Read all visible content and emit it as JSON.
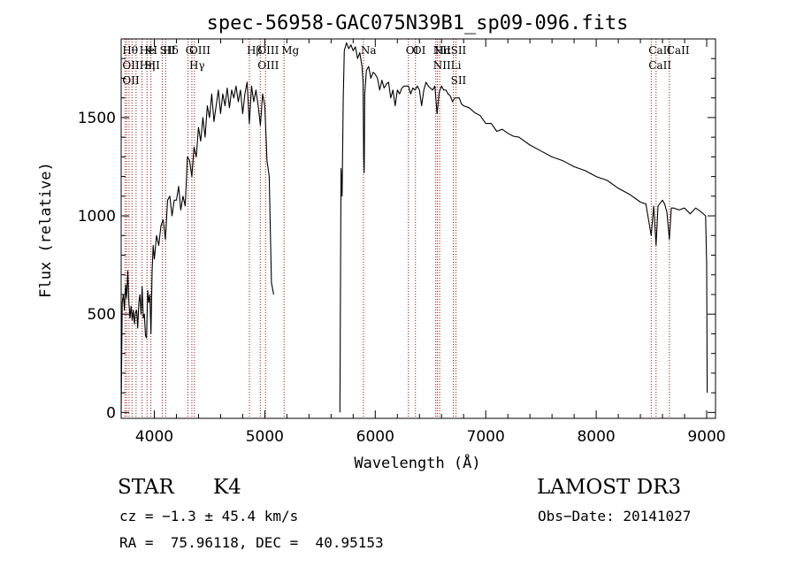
{
  "chart_data": {
    "type": "line",
    "title": "spec-56958-GAC075N39B1_sp09-096.fits",
    "xlabel": "Wavelength (Å)",
    "ylabel": "Flux (relative)",
    "xlim": [
      3700,
      9080
    ],
    "ylim": [
      -30,
      1900
    ],
    "xticks": [
      4000,
      5000,
      6000,
      7000,
      8000,
      9000
    ],
    "yticks": [
      0,
      500,
      1000,
      1500
    ],
    "grid": false,
    "line_color": "#000000",
    "marker_color": "#a01010",
    "gap": [
      5080,
      5680
    ],
    "series": [
      {
        "name": "flux",
        "segments": [
          [
            [
              3700,
              0
            ],
            [
              3710,
              560
            ],
            [
              3720,
              600
            ],
            [
              3730,
              520
            ],
            [
              3740,
              650
            ],
            [
              3750,
              580
            ],
            [
              3760,
              720
            ],
            [
              3770,
              560
            ],
            [
              3780,
              480
            ],
            [
              3790,
              540
            ],
            [
              3800,
              470
            ],
            [
              3810,
              520
            ],
            [
              3820,
              450
            ],
            [
              3830,
              510
            ],
            [
              3840,
              520
            ],
            [
              3850,
              430
            ],
            [
              3860,
              560
            ],
            [
              3870,
              600
            ],
            [
              3880,
              500
            ],
            [
              3890,
              640
            ],
            [
              3900,
              480
            ],
            [
              3910,
              500
            ],
            [
              3920,
              390
            ],
            [
              3930,
              380
            ],
            [
              3940,
              620
            ],
            [
              3950,
              560
            ],
            [
              3960,
              600
            ],
            [
              3970,
              400
            ],
            [
              3980,
              720
            ],
            [
              3990,
              850
            ],
            [
              4000,
              780
            ],
            [
              4020,
              900
            ],
            [
              4040,
              850
            ],
            [
              4060,
              950
            ],
            [
              4080,
              980
            ],
            [
              4100,
              880
            ],
            [
              4120,
              1080
            ],
            [
              4140,
              1100
            ],
            [
              4160,
              1000
            ],
            [
              4180,
              1080
            ],
            [
              4200,
              1080
            ],
            [
              4220,
              1150
            ],
            [
              4240,
              1030
            ],
            [
              4260,
              1100
            ],
            [
              4280,
              1050
            ],
            [
              4300,
              1300
            ],
            [
              4320,
              1280
            ],
            [
              4340,
              1200
            ],
            [
              4360,
              1350
            ],
            [
              4380,
              1300
            ],
            [
              4400,
              1450
            ],
            [
              4420,
              1380
            ],
            [
              4440,
              1500
            ],
            [
              4460,
              1400
            ],
            [
              4480,
              1560
            ],
            [
              4500,
              1500
            ],
            [
              4520,
              1620
            ],
            [
              4540,
              1480
            ],
            [
              4560,
              1560
            ],
            [
              4580,
              1640
            ],
            [
              4600,
              1520
            ],
            [
              4620,
              1620
            ],
            [
              4640,
              1560
            ],
            [
              4660,
              1650
            ],
            [
              4680,
              1550
            ],
            [
              4700,
              1640
            ],
            [
              4720,
              1600
            ],
            [
              4740,
              1660
            ],
            [
              4760,
              1580
            ],
            [
              4780,
              1640
            ],
            [
              4800,
              1520
            ],
            [
              4820,
              1620
            ],
            [
              4840,
              1680
            ],
            [
              4860,
              1470
            ],
            [
              4880,
              1660
            ],
            [
              4900,
              1580
            ],
            [
              4920,
              1640
            ],
            [
              4940,
              1560
            ],
            [
              4960,
              1460
            ],
            [
              4980,
              1620
            ],
            [
              5000,
              1560
            ],
            [
              5020,
              1280
            ],
            [
              5040,
              1200
            ],
            [
              5060,
              660
            ],
            [
              5080,
              600
            ]
          ],
          [
            [
              5680,
              0
            ],
            [
              5690,
              1240
            ],
            [
              5700,
              1100
            ],
            [
              5710,
              1600
            ],
            [
              5720,
              1840
            ],
            [
              5740,
              1880
            ],
            [
              5760,
              1850
            ],
            [
              5780,
              1870
            ],
            [
              5800,
              1840
            ],
            [
              5820,
              1860
            ],
            [
              5840,
              1800
            ],
            [
              5860,
              1830
            ],
            [
              5880,
              1760
            ],
            [
              5890,
              1680
            ],
            [
              5895,
              1300
            ],
            [
              5900,
              1220
            ],
            [
              5905,
              1620
            ],
            [
              5920,
              1740
            ],
            [
              5940,
              1760
            ],
            [
              5960,
              1700
            ],
            [
              5980,
              1730
            ],
            [
              6000,
              1720
            ],
            [
              6020,
              1700
            ],
            [
              6040,
              1640
            ],
            [
              6060,
              1690
            ],
            [
              6080,
              1650
            ],
            [
              6100,
              1670
            ],
            [
              6120,
              1680
            ],
            [
              6140,
              1600
            ],
            [
              6160,
              1640
            ],
            [
              6180,
              1560
            ],
            [
              6200,
              1640
            ],
            [
              6220,
              1620
            ],
            [
              6240,
              1650
            ],
            [
              6260,
              1660
            ],
            [
              6280,
              1660
            ],
            [
              6300,
              1660
            ],
            [
              6320,
              1620
            ],
            [
              6340,
              1650
            ],
            [
              6360,
              1640
            ],
            [
              6380,
              1660
            ],
            [
              6400,
              1640
            ],
            [
              6420,
              1560
            ],
            [
              6440,
              1640
            ],
            [
              6460,
              1680
            ],
            [
              6480,
              1660
            ],
            [
              6500,
              1650
            ],
            [
              6520,
              1640
            ],
            [
              6540,
              1660
            ],
            [
              6560,
              1520
            ],
            [
              6580,
              1630
            ],
            [
              6600,
              1660
            ],
            [
              6620,
              1640
            ],
            [
              6640,
              1640
            ],
            [
              6660,
              1620
            ],
            [
              6680,
              1610
            ],
            [
              6700,
              1580
            ],
            [
              6720,
              1600
            ],
            [
              6740,
              1600
            ],
            [
              6760,
              1600
            ],
            [
              6780,
              1570
            ],
            [
              6800,
              1560
            ],
            [
              6850,
              1550
            ],
            [
              6900,
              1525
            ],
            [
              6950,
              1510
            ],
            [
              7000,
              1470
            ],
            [
              7050,
              1470
            ],
            [
              7100,
              1430
            ],
            [
              7150,
              1440
            ],
            [
              7200,
              1420
            ],
            [
              7250,
              1405
            ],
            [
              7300,
              1400
            ],
            [
              7400,
              1360
            ],
            [
              7500,
              1330
            ],
            [
              7600,
              1300
            ],
            [
              7700,
              1280
            ],
            [
              7800,
              1250
            ],
            [
              7900,
              1230
            ],
            [
              8000,
              1200
            ],
            [
              8100,
              1180
            ],
            [
              8200,
              1140
            ],
            [
              8300,
              1110
            ],
            [
              8400,
              1070
            ],
            [
              8450,
              1060
            ],
            [
              8498,
              900
            ],
            [
              8520,
              1050
            ],
            [
              8542,
              850
            ],
            [
              8560,
              1050
            ],
            [
              8600,
              1080
            ],
            [
              8620,
              1060
            ],
            [
              8640,
              1020
            ],
            [
              8662,
              880
            ],
            [
              8680,
              1040
            ],
            [
              8700,
              1040
            ],
            [
              8750,
              1030
            ],
            [
              8800,
              1040
            ],
            [
              8850,
              1010
            ],
            [
              8900,
              1040
            ],
            [
              8950,
              1020
            ],
            [
              8990,
              1000
            ],
            [
              9000,
              750
            ],
            [
              9005,
              100
            ]
          ]
        ]
      }
    ],
    "lines": [
      {
        "wavelength": 3735,
        "labels": [
          "Hθ",
          "OII",
          "OII"
        ]
      },
      {
        "wavelength": 3750,
        "labels": []
      },
      {
        "wavelength": 3771,
        "labels": []
      },
      {
        "wavelength": 3798,
        "labels": []
      },
      {
        "wavelength": 3835,
        "labels": []
      },
      {
        "wavelength": 3889,
        "labels": [
          "He",
          "Hη"
        ]
      },
      {
        "wavelength": 3934,
        "labels": [
          "K",
          "SII"
        ]
      },
      {
        "wavelength": 3969,
        "labels": [
          "H"
        ]
      },
      {
        "wavelength": 4072,
        "labels": [
          "SII"
        ]
      },
      {
        "wavelength": 4102,
        "labels": [
          "Hδ"
        ]
      },
      {
        "wavelength": 4305,
        "labels": [
          "G"
        ]
      },
      {
        "wavelength": 4340,
        "labels": [
          "OIII",
          "Hγ"
        ]
      },
      {
        "wavelength": 4363,
        "labels": []
      },
      {
        "wavelength": 4861,
        "labels": [
          "Hβ"
        ]
      },
      {
        "wavelength": 4959,
        "labels": [
          "OIII",
          "OIII"
        ]
      },
      {
        "wavelength": 5007,
        "labels": []
      },
      {
        "wavelength": 5175,
        "labels": [
          "Mg"
        ]
      },
      {
        "wavelength": 5893,
        "labels": [
          "Na"
        ]
      },
      {
        "wavelength": 6300,
        "labels": [
          "OI"
        ]
      },
      {
        "wavelength": 6364,
        "labels": [
          "OI"
        ]
      },
      {
        "wavelength": 6548,
        "labels": [
          "NII",
          "NII"
        ]
      },
      {
        "wavelength": 6563,
        "labels": [
          "Hα"
        ]
      },
      {
        "wavelength": 6583,
        "labels": []
      },
      {
        "wavelength": 6707,
        "labels": [
          "SII",
          "Li",
          "SII"
        ]
      },
      {
        "wavelength": 6731,
        "labels": []
      },
      {
        "wavelength": 8498,
        "labels": [
          "CaII",
          "CaII"
        ]
      },
      {
        "wavelength": 8542,
        "labels": []
      },
      {
        "wavelength": 8662,
        "labels": [
          "CaII"
        ]
      }
    ]
  },
  "info": {
    "object_class": "STAR",
    "subclass": "K4",
    "survey": "LAMOST DR3",
    "cz": "cz = −1.3 ± 45.4 km/s",
    "obs_date": "Obs−Date: 20141027",
    "coords": "RA =  75.96118, DEC =  40.95153"
  }
}
